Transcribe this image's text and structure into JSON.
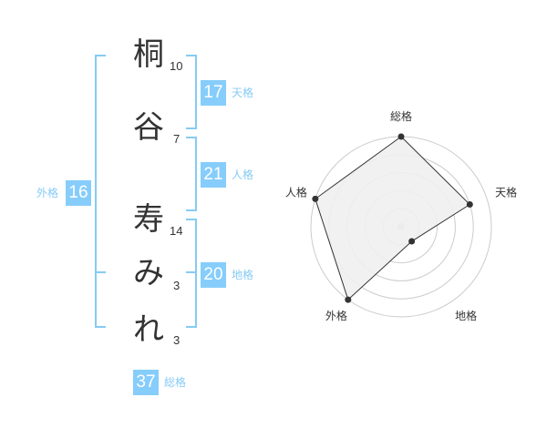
{
  "name": {
    "chars": [
      {
        "char": "桐",
        "strokes": "10"
      },
      {
        "char": "谷",
        "strokes": "7"
      },
      {
        "char": "寿",
        "strokes": "14"
      },
      {
        "char": "み",
        "strokes": "3"
      },
      {
        "char": "れ",
        "strokes": "3"
      }
    ]
  },
  "fortunes": {
    "tenkaku": {
      "value": "17",
      "label": "天格"
    },
    "jinkaku": {
      "value": "21",
      "label": "人格"
    },
    "chikaku": {
      "value": "20",
      "label": "地格"
    },
    "gaikaku": {
      "value": "16",
      "label": "外格"
    },
    "soukaku": {
      "value": "37",
      "label": "総格"
    }
  },
  "colors": {
    "accent": "#86cdfb",
    "bracket": "#86cbf5",
    "radar_fill": "#f0f0f0",
    "radar_line": "#333333",
    "ring": "#cccccc"
  },
  "chart_data": {
    "type": "radar",
    "axes": [
      "総格",
      "天格",
      "地格",
      "外格",
      "人格"
    ],
    "values": [
      5,
      4,
      1,
      5,
      5
    ],
    "range": [
      0,
      5
    ],
    "rings": 5
  }
}
